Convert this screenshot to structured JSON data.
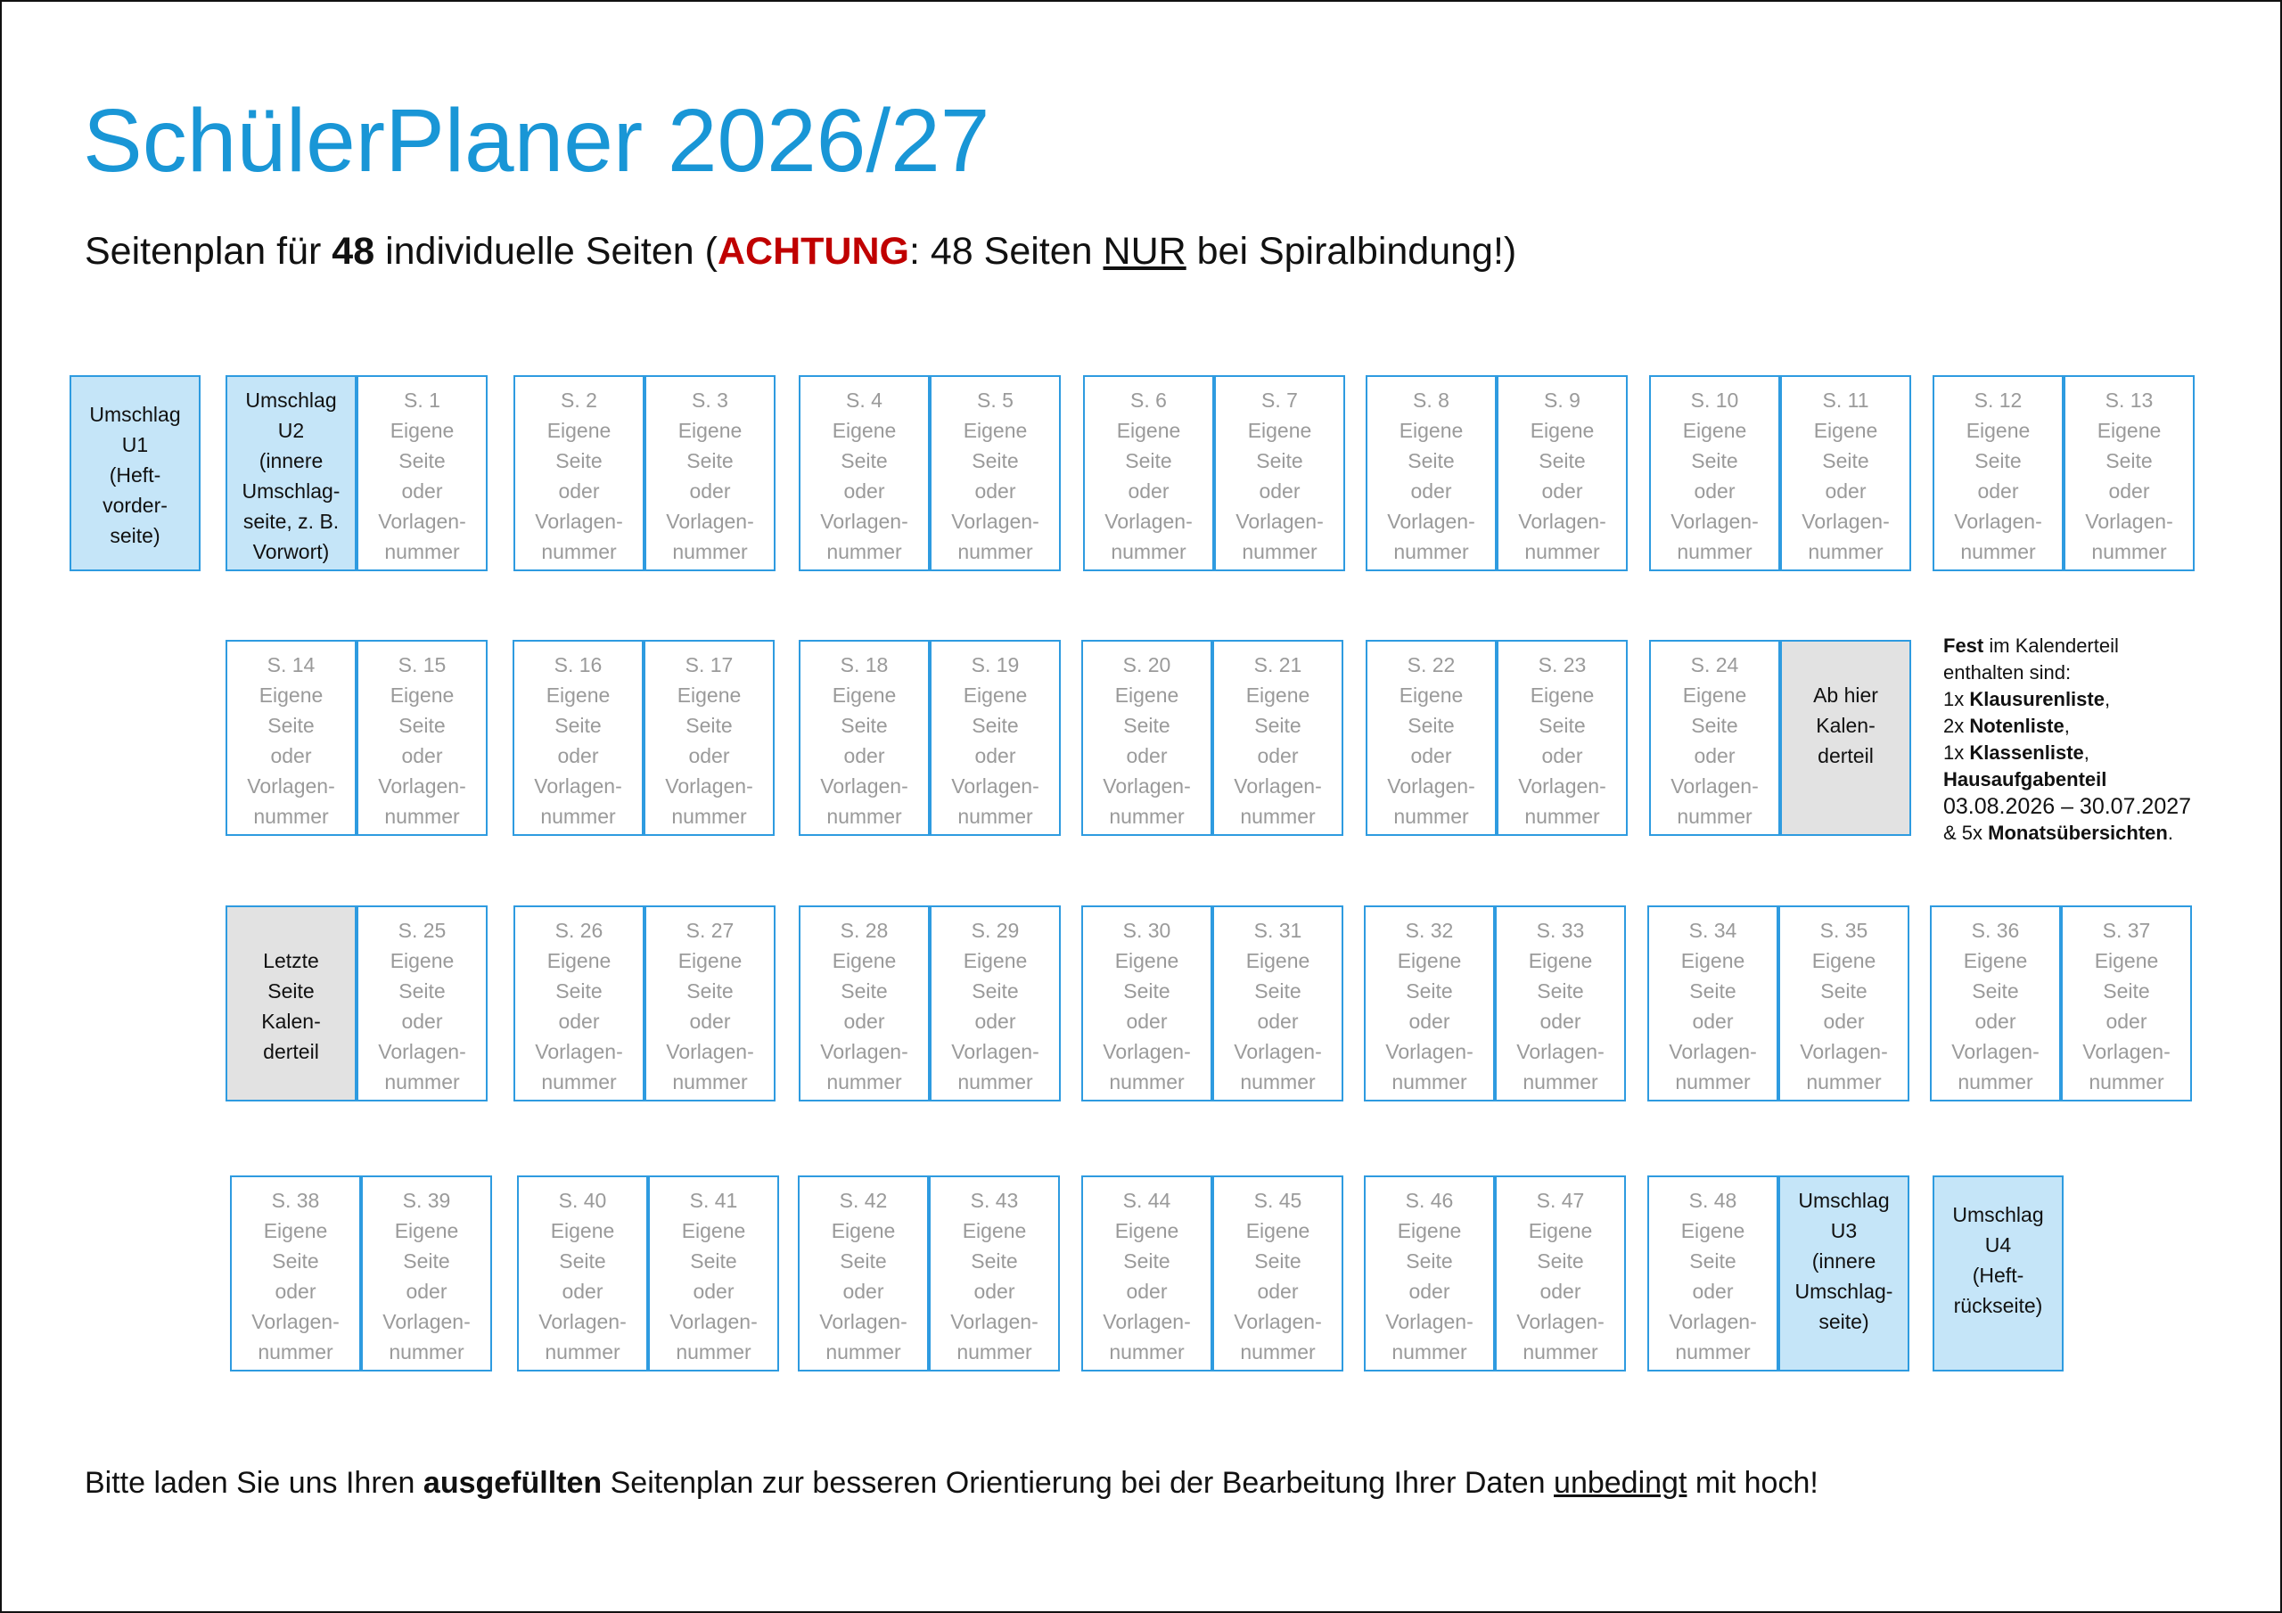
{
  "title": "SchülerPlaner 2026/27",
  "subtitle": {
    "pre": "Seitenplan für ",
    "count": "48",
    "mid": " individuelle Seiten (",
    "warning": "ACHTUNG",
    "post1": ": 48 Seiten ",
    "only": "NUR",
    "post2": " bei Spiralbindung!)"
  },
  "page_lines": [
    "Eigene",
    "Seite",
    "oder",
    "Vorlagen-",
    "nummer"
  ],
  "special": {
    "u1": [
      "Umschlag",
      "U1",
      "(Heft-",
      "vorder-",
      "seite)"
    ],
    "u2": [
      "Umschlag",
      "U2",
      "(innere",
      "Umschlag-",
      "seite, z. B.",
      "Vorwort)"
    ],
    "calendar_start": [
      "Ab hier",
      "Kalen-",
      "derteil"
    ],
    "calendar_end": [
      "Letzte",
      "Seite",
      "Kalen-",
      "derteil"
    ],
    "u3": [
      "Umschlag",
      "U3",
      "(innere",
      "Umschlag-",
      "seite)"
    ],
    "u4": [
      "Umschlag",
      "U4",
      "(Heft-",
      "rückseite)"
    ]
  },
  "pages": [
    "S. 1",
    "S. 2",
    "S. 3",
    "S. 4",
    "S. 5",
    "S. 6",
    "S. 7",
    "S. 8",
    "S. 9",
    "S. 10",
    "S. 11",
    "S. 12",
    "S. 13",
    "S. 14",
    "S. 15",
    "S. 16",
    "S. 17",
    "S. 18",
    "S. 19",
    "S. 20",
    "S. 21",
    "S. 22",
    "S. 23",
    "S. 24",
    "S. 25",
    "S. 26",
    "S. 27",
    "S. 28",
    "S. 29",
    "S. 30",
    "S. 31",
    "S. 32",
    "S. 33",
    "S. 34",
    "S. 35",
    "S. 36",
    "S. 37",
    "S. 38",
    "S. 39",
    "S. 40",
    "S. 41",
    "S. 42",
    "S. 43",
    "S. 44",
    "S. 45",
    "S. 46",
    "S. 47",
    "S. 48"
  ],
  "calendar_note": {
    "l1_bold": "Fest",
    "l1": " im Kalenderteil",
    "l2": "enthalten sind:",
    "l3_pre": "1x ",
    "l3_bold": "Klausurenliste",
    "l3_post": ",",
    "l4_pre": "2x ",
    "l4_bold": "Notenliste",
    "l4_post": ",",
    "l5_pre": "1x ",
    "l5_bold": "Klassenliste",
    "l5_post": ",",
    "l6_bold": "Hausaufgabenteil",
    "l7": "03.08.2026 – 30.07.2027",
    "l8_pre": "& 5x ",
    "l8_bold": "Monatsübersichten",
    "l8_post": "."
  },
  "footer": {
    "pre": "Bitte laden Sie uns Ihren ",
    "bold": "ausgefüllten",
    "mid": " Seitenplan zur besseren Orientierung bei der Bearbeitung Ihrer Daten ",
    "underline": "unbedingt",
    "post": " mit hoch!"
  },
  "colors": {
    "title": "#1996d6",
    "border": "#2e9be0",
    "cover_fill": "#c5e5f8",
    "calendar_fill": "#e2e2e2",
    "warning": "#c00000",
    "page_text": "#9a9a9a"
  }
}
